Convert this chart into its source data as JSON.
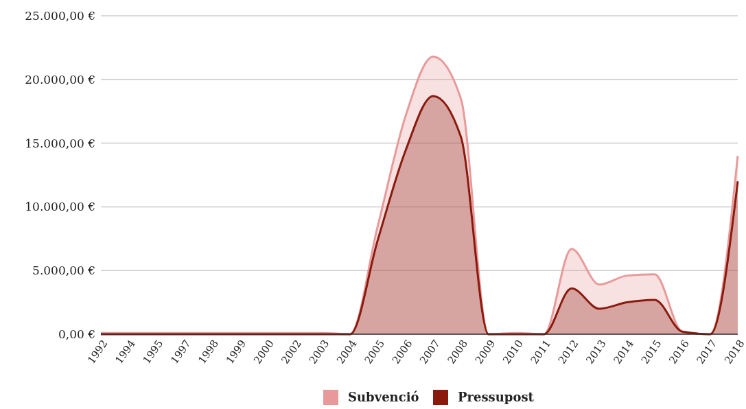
{
  "chart_data": {
    "type": "area",
    "categories": [
      "1992",
      "1994",
      "1995",
      "1997",
      "1998",
      "1999",
      "2000",
      "2002",
      "2003",
      "2004",
      "2005",
      "2006",
      "2007",
      "2008",
      "2009",
      "2010",
      "2011",
      "2012",
      "2013",
      "2014",
      "2015",
      "2016",
      "2017",
      "2018"
    ],
    "series": [
      {
        "name": "Subvenció",
        "color": "#e89a9a",
        "values": [
          100,
          100,
          100,
          100,
          100,
          100,
          100,
          100,
          100,
          0,
          8500,
          17100,
          21800,
          18500,
          0,
          100,
          0,
          6700,
          3900,
          4600,
          4700,
          200,
          0,
          14000
        ]
      },
      {
        "name": "Pressupost",
        "color": "#8b1a0e",
        "values": [
          0,
          0,
          0,
          0,
          0,
          0,
          0,
          0,
          0,
          0,
          7400,
          14400,
          18700,
          15500,
          0,
          0,
          0,
          3600,
          2000,
          2500,
          2700,
          200,
          0,
          12000
        ]
      }
    ],
    "ylim": [
      0,
      25000
    ],
    "yticks": [
      {
        "value": 0,
        "label": "0,00 €"
      },
      {
        "value": 5000,
        "label": "5.000,00 €"
      },
      {
        "value": 10000,
        "label": "10.000,00 €"
      },
      {
        "value": 15000,
        "label": "15.000,00 €"
      },
      {
        "value": 20000,
        "label": "20.000,00 €"
      },
      {
        "value": 25000,
        "label": "25.000,00 €"
      }
    ],
    "grid": "y",
    "legend": "bottom"
  }
}
